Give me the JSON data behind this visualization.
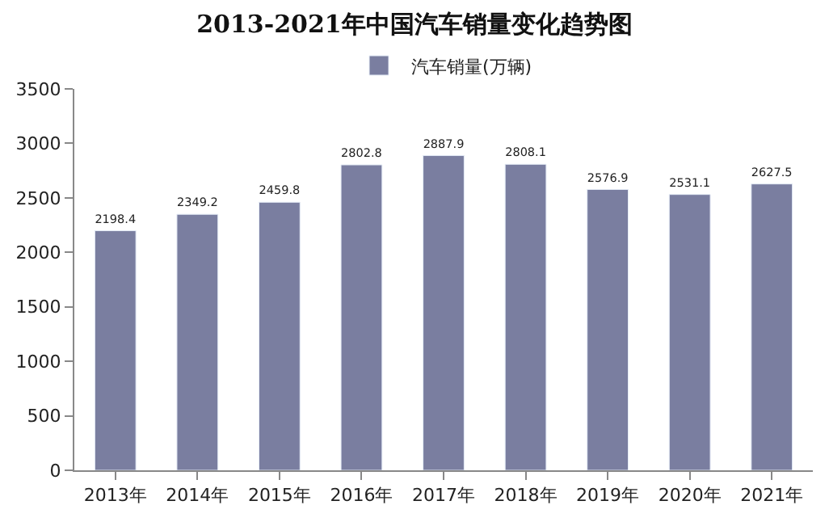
{
  "chart_data": {
    "type": "bar",
    "title": "2013-2021年中国汽车销量变化趋势图",
    "categories": [
      "2013年",
      "2014年",
      "2015年",
      "2016年",
      "2017年",
      "2018年",
      "2019年",
      "2020年",
      "2021年"
    ],
    "series": [
      {
        "name": "汽车销量(万辆)",
        "color": "#7a7ea0",
        "values": [
          2198.4,
          2349.2,
          2459.8,
          2802.8,
          2887.9,
          2808.1,
          2576.9,
          2531.1,
          2627.5
        ]
      }
    ],
    "ylim": [
      0,
      3500
    ],
    "yticks": [
      0,
      500,
      1000,
      1500,
      2000,
      2500,
      3000,
      3500
    ],
    "data_labels": true,
    "legend": "top",
    "grid": false
  }
}
